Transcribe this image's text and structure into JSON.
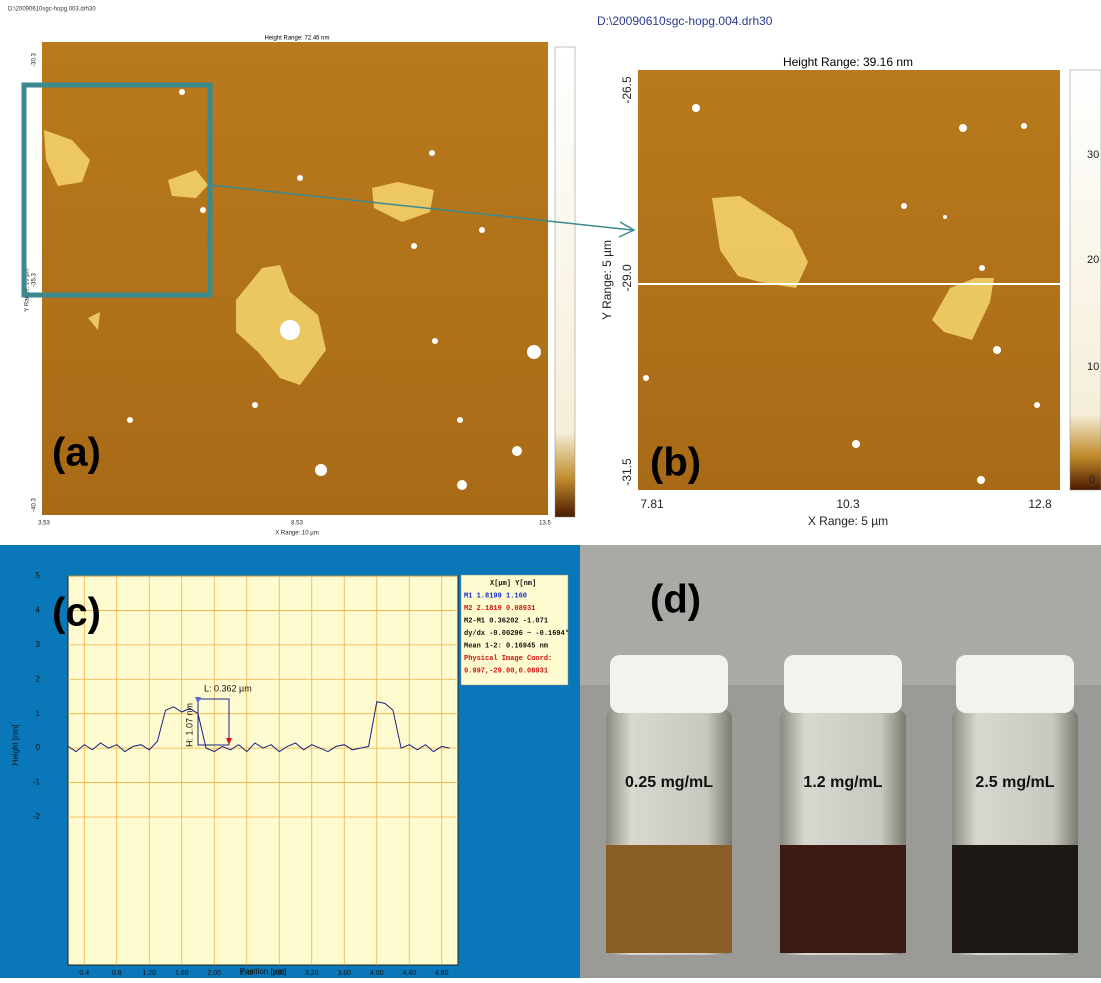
{
  "panel_a": {
    "label": "(a)",
    "file": "D:\\20090610sgc-hopg.003.drh30",
    "height_range": "Height Range: 72.46 nm",
    "yticks": [
      "-30.3",
      "-35.3",
      "-40.3"
    ],
    "y_title": "Y Range: 10 µm",
    "xticks": [
      "3.53",
      "8.53",
      "13.5"
    ],
    "x_title": "X Range: 10 µm"
  },
  "panel_b": {
    "label": "(b)",
    "file": "D:\\20090610sgc-hopg.004.drh30",
    "height_range": "Height Range: 39.16 nm",
    "yticks": [
      "-26.5",
      "-29.0",
      "-31.5"
    ],
    "y_title": "Y Range: 5 µm",
    "xticks": [
      "7.81",
      "10.3",
      "12.8"
    ],
    "x_title": "X Range: 5 µm",
    "colorbar_ticks": [
      "30",
      "20",
      "10",
      "0"
    ]
  },
  "chart_data": {
    "type": "line",
    "label": "(c)",
    "x_title": "Position [µm]",
    "y_title": "Height [nm]",
    "x": [
      0.2,
      0.3,
      0.4,
      0.5,
      0.6,
      0.7,
      0.8,
      0.9,
      1.0,
      1.1,
      1.2,
      1.3,
      1.4,
      1.5,
      1.6,
      1.7,
      1.8,
      1.9,
      2.0,
      2.1,
      2.2,
      2.3,
      2.4,
      2.5,
      2.6,
      2.7,
      2.8,
      2.9,
      3.0,
      3.1,
      3.2,
      3.3,
      3.4,
      3.5,
      3.6,
      3.7,
      3.8,
      3.9,
      4.0,
      4.1,
      4.2,
      4.3,
      4.4,
      4.5,
      4.6,
      4.7,
      4.8,
      4.9
    ],
    "values": [
      0.05,
      -0.1,
      0.1,
      -0.05,
      0.15,
      0.0,
      0.1,
      -0.1,
      0.05,
      0.1,
      -0.05,
      0.2,
      1.1,
      1.2,
      1.05,
      1.15,
      1.0,
      0.0,
      -0.1,
      0.05,
      -0.05,
      0.1,
      -0.1,
      0.15,
      0.0,
      0.1,
      -0.1,
      0.05,
      0.15,
      -0.05,
      0.1,
      0.0,
      -0.1,
      0.05,
      0.1,
      -0.05,
      0.0,
      0.05,
      1.35,
      1.3,
      1.1,
      0.0,
      0.1,
      -0.05,
      0.1,
      -0.1,
      0.05,
      0.0
    ],
    "color": "#1a237e",
    "grid": true,
    "xlim": [
      0.2,
      5.0
    ],
    "ylim": [
      -6.3,
      5
    ],
    "xticks": [
      0.4,
      0.8,
      {
        "value": 1.2,
        "label": "1.20"
      },
      {
        "value": 1.6,
        "label": "1.60"
      },
      {
        "value": 2.0,
        "label": "2.00"
      },
      {
        "value": 2.4,
        "label": "2.40"
      },
      {
        "value": 2.8,
        "label": "2.80"
      },
      {
        "value": 3.2,
        "label": "3.20"
      },
      {
        "value": 3.6,
        "label": "3.60"
      },
      {
        "value": 4.0,
        "label": "4.00"
      },
      {
        "value": 4.4,
        "label": "4.40"
      },
      {
        "value": 4.8,
        "label": "4.80"
      }
    ],
    "yticks": [
      -2,
      -1,
      0,
      1,
      2,
      3,
      4,
      5
    ],
    "annotations": [
      "L: 0.362 µm",
      "H: 1.07 nm"
    ],
    "info_box": [
      "X[µm]  Y[nm]",
      "M1      1.8199  1.160",
      "M2      2.1819  0.08931",
      "M2-M1  0.36202  -1.071",
      "dy/dx  -0.00296 ~ -0.1694°",
      "Mean 1-2:  0.16945 nm",
      "Physical Image Coord:",
      "9.997,-29.00,0.08931"
    ]
  },
  "panel_d": {
    "label": "(d)",
    "vials": [
      "0.25 mg/mL",
      "1.2 mg/mL",
      "2.5 mg/mL"
    ]
  }
}
